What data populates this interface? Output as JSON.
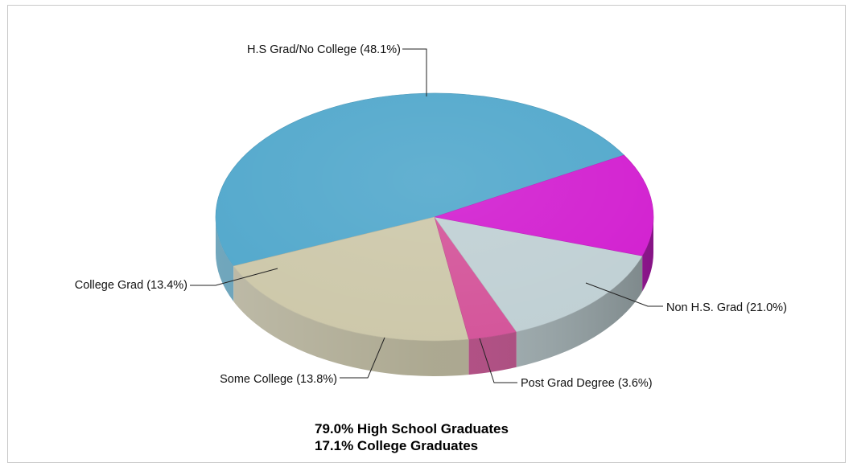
{
  "chart_data": {
    "type": "pie",
    "title": "",
    "slices": [
      {
        "label": "H.S Grad/No College (48.1%)",
        "value": 48.1,
        "color": "#52a8cc"
      },
      {
        "label": "Non H.S. Grad (21.0%)",
        "value": 21.0,
        "color": "#cdc8aa"
      },
      {
        "label": "Post Grad Degree (3.6%)",
        "value": 3.6,
        "color": "#d4559a"
      },
      {
        "label": "Some College (13.8%)",
        "value": 13.8,
        "color": "#c0d0d4"
      },
      {
        "label": "College Grad (13.4%)",
        "value": 13.4,
        "color": "#d21fd0"
      }
    ],
    "annotations": [
      "79.0% High School Graduates",
      "17.1% College Graduates"
    ]
  }
}
